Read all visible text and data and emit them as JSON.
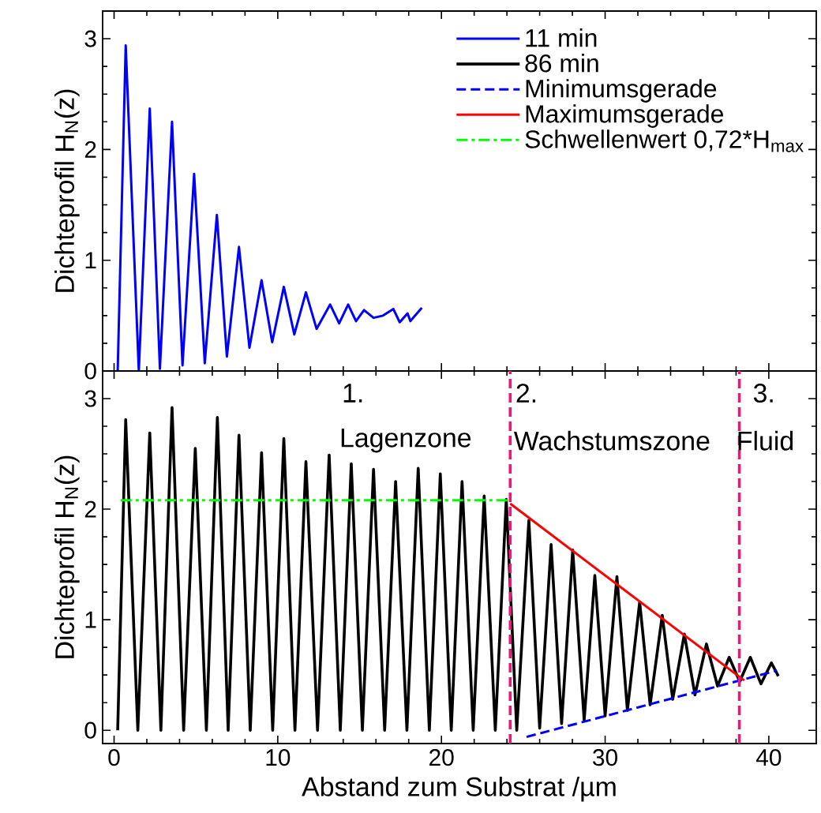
{
  "chart_data": [
    {
      "type": "line",
      "ylabel": "Dichteprofil H$_{N}$(z)",
      "xlim": [
        -0.7,
        42.9
      ],
      "ylim": [
        0,
        3.25
      ],
      "xticks": [
        0,
        10,
        20,
        30,
        40
      ],
      "yticks": [
        0,
        1,
        2,
        3
      ],
      "tick_labels": "y",
      "legend": "top right",
      "series": [
        {
          "name": "11 min",
          "color": "#0000ff",
          "line_style": "solid",
          "x": [
            0.22,
            0.71,
            1.51,
            2.18,
            2.8,
            3.54,
            4.18,
            4.89,
            5.54,
            6.28,
            6.89,
            7.63,
            8.27,
            9.01,
            9.66,
            10.37,
            11.01,
            11.72,
            12.37,
            13.2,
            13.75,
            14.3,
            14.78,
            15.27,
            15.85,
            16.43,
            17.06,
            17.45,
            17.93,
            18.1,
            18.8
          ],
          "values": [
            0,
            2.94,
            0,
            2.37,
            0.02,
            2.25,
            0.05,
            1.78,
            0.07,
            1.41,
            0.13,
            1.12,
            0.21,
            0.82,
            0.26,
            0.76,
            0.33,
            0.71,
            0.38,
            0.6,
            0.43,
            0.6,
            0.45,
            0.55,
            0.48,
            0.5,
            0.56,
            0.44,
            0.52,
            0.45,
            0.57
          ]
        }
      ]
    },
    {
      "type": "line",
      "xlabel": "Abstand zum Substrat /µm",
      "ylabel": "Dichteprofil H$_{N}$(z)",
      "xlim": [
        -0.7,
        42.9
      ],
      "ylim": [
        -0.12,
        3.25
      ],
      "xticks": [
        0,
        10,
        20,
        30,
        40
      ],
      "yticks": [
        0,
        1,
        2,
        3
      ],
      "series": [
        {
          "name": "86 min",
          "color": "#000000",
          "line_style": "solid",
          "x": [
            0.22,
            0.71,
            1.45,
            2.18,
            2.86,
            3.54,
            4.25,
            4.96,
            5.64,
            6.31,
            6.97,
            7.63,
            8.32,
            9.01,
            9.69,
            10.37,
            11.05,
            11.72,
            12.43,
            13.14,
            13.82,
            14.49,
            15.17,
            15.85,
            16.53,
            17.2,
            17.89,
            18.58,
            19.26,
            19.93,
            20.6,
            21.26,
            21.94,
            22.61,
            23.29,
            23.96,
            24.6,
            25.34,
            26.0,
            26.7,
            27.34,
            28.02,
            28.72,
            29.37,
            30.0,
            30.72,
            31.36,
            32.11,
            32.75,
            33.49,
            34.13,
            34.84,
            35.49,
            36.19,
            36.87,
            37.58,
            38.22,
            38.87,
            39.52,
            40.16,
            40.58
          ],
          "values": [
            0,
            2.81,
            0,
            2.69,
            0,
            2.92,
            0,
            2.55,
            0,
            2.83,
            0,
            2.67,
            0,
            2.51,
            0,
            2.64,
            0,
            2.43,
            0,
            2.49,
            0,
            2.41,
            0,
            2.36,
            0,
            2.25,
            0,
            2.37,
            0,
            2.32,
            0,
            2.25,
            0,
            2.12,
            0,
            2.09,
            0,
            1.9,
            0.02,
            1.68,
            0.06,
            1.63,
            0.09,
            1.4,
            0.13,
            1.39,
            0.18,
            1.16,
            0.23,
            1.04,
            0.28,
            0.87,
            0.32,
            0.78,
            0.4,
            0.66,
            0.44,
            0.66,
            0.42,
            0.61,
            0.49
          ]
        },
        {
          "name": "Minimumsgerade",
          "color": "#0000ff",
          "line_style": "dashed",
          "x": [
            25.2,
            40.5
          ],
          "values": [
            -0.06,
            0.54
          ]
        },
        {
          "name": "Maximumsgerade",
          "color": "#ff0000",
          "line_style": "solid",
          "x": [
            24.2,
            38.5
          ],
          "values": [
            2.05,
            0.45
          ]
        },
        {
          "name": "Schwellenwert 0,72*H$_{max}$",
          "color": "#00ff00",
          "line_style": "dashdot",
          "x": [
            0.4,
            24.2
          ],
          "values": [
            2.08,
            2.08
          ]
        }
      ],
      "ref_lines": [
        {
          "axis": "x",
          "value": 24.2,
          "color": "#f0147c",
          "line_style": "dashed"
        },
        {
          "axis": "x",
          "value": 38.2,
          "color": "#f0147c",
          "line_style": "dashed"
        }
      ],
      "annotations": [
        "1.",
        "Lagenzone",
        "2.",
        "Wachstumszone",
        "3.",
        "Fluid"
      ]
    }
  ]
}
